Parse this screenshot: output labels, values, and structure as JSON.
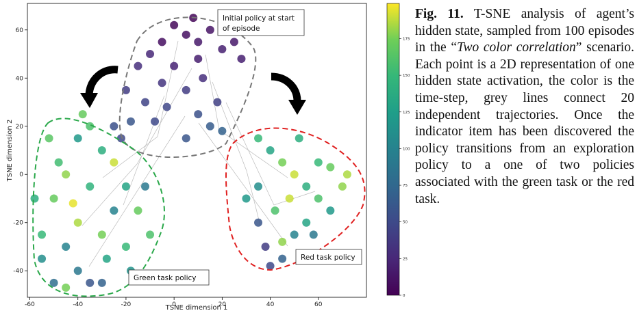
{
  "chart_data": {
    "type": "scatter",
    "xlabel": "TSNE dimension 1",
    "ylabel": "TSNE dimension 2",
    "xlim": [
      -61,
      80
    ],
    "ylim": [
      -51,
      71
    ],
    "xticks": [
      -60,
      -40,
      -20,
      0,
      20,
      40,
      60
    ],
    "yticks": [
      -40,
      -20,
      0,
      20,
      40,
      60
    ],
    "colormap": "viridis",
    "clim": [
      0,
      199
    ],
    "cticks": [
      0,
      25,
      50,
      75,
      100,
      125,
      150,
      175
    ],
    "annotations": [
      {
        "lines": [
          "Initial policy at start",
          "of episode"
        ]
      },
      {
        "lines": [
          "Red task policy"
        ]
      },
      {
        "lines": [
          "Green task policy"
        ]
      }
    ],
    "x": [
      0,
      5,
      10,
      -5,
      8,
      15,
      20,
      -10,
      -15,
      0,
      10,
      25,
      -20,
      -12,
      -5,
      5,
      12,
      -25,
      -18,
      -8,
      10,
      15,
      20,
      5,
      -22,
      28,
      -3,
      18,
      -55,
      -50,
      -45,
      -40,
      -35,
      -30,
      -25,
      -20,
      -15,
      -45,
      -40,
      -35,
      -30,
      -50,
      -55,
      -40,
      -30,
      -20,
      -10,
      -25,
      -35,
      -48,
      -52,
      -42,
      -28,
      -18,
      -45,
      -12,
      -38,
      -58,
      35,
      40,
      45,
      50,
      55,
      60,
      65,
      70,
      72,
      35,
      38,
      40,
      45,
      50,
      55,
      42,
      35,
      48,
      60,
      65,
      30,
      52,
      58,
      45
    ],
    "y": [
      62,
      58,
      55,
      55,
      65,
      60,
      52,
      50,
      45,
      45,
      48,
      55,
      35,
      30,
      38,
      35,
      40,
      20,
      22,
      22,
      25,
      20,
      18,
      15,
      15,
      48,
      28,
      30,
      -25,
      -10,
      0,
      15,
      20,
      10,
      5,
      -5,
      -15,
      -30,
      -40,
      -45,
      -45,
      -45,
      -35,
      -20,
      -25,
      -30,
      -25,
      -15,
      -5,
      5,
      15,
      -12,
      -35,
      -40,
      -47,
      -5,
      25,
      -10,
      15,
      10,
      5,
      0,
      -5,
      -10,
      -15,
      -5,
      0,
      -20,
      -30,
      -38,
      -35,
      -25,
      -20,
      -15,
      -5,
      -10,
      5,
      3,
      -10,
      15,
      -25,
      -28
    ],
    "color_values": [
      5,
      10,
      15,
      8,
      3,
      12,
      20,
      25,
      30,
      22,
      18,
      15,
      40,
      45,
      35,
      40,
      30,
      55,
      60,
      50,
      55,
      65,
      70,
      60,
      50,
      20,
      48,
      42,
      150,
      170,
      180,
      120,
      160,
      140,
      190,
      130,
      170,
      100,
      90,
      60,
      70,
      80,
      110,
      185,
      175,
      150,
      160,
      100,
      145,
      155,
      165,
      195,
      130,
      115,
      175,
      90,
      170,
      140,
      150,
      130,
      175,
      190,
      140,
      160,
      120,
      180,
      185,
      60,
      40,
      50,
      70,
      100,
      130,
      160,
      110,
      190,
      150,
      170,
      120,
      140,
      90,
      180
    ]
  },
  "caption": {
    "label": "Fig. 11.",
    "text_before": "T-SNE analysis of agent’s hidden state, sampled from 100 episodes in the “",
    "italic": "Two color correlation",
    "text_after": "” scenario. Each point is a 2D representation of one hidden state activation, the color is the time-step, grey lines connect 20 independent trajectories. Once the indicator item has been discovered the policy transitions from an exploration policy to a one of two policies associated with the green task or the red task."
  }
}
